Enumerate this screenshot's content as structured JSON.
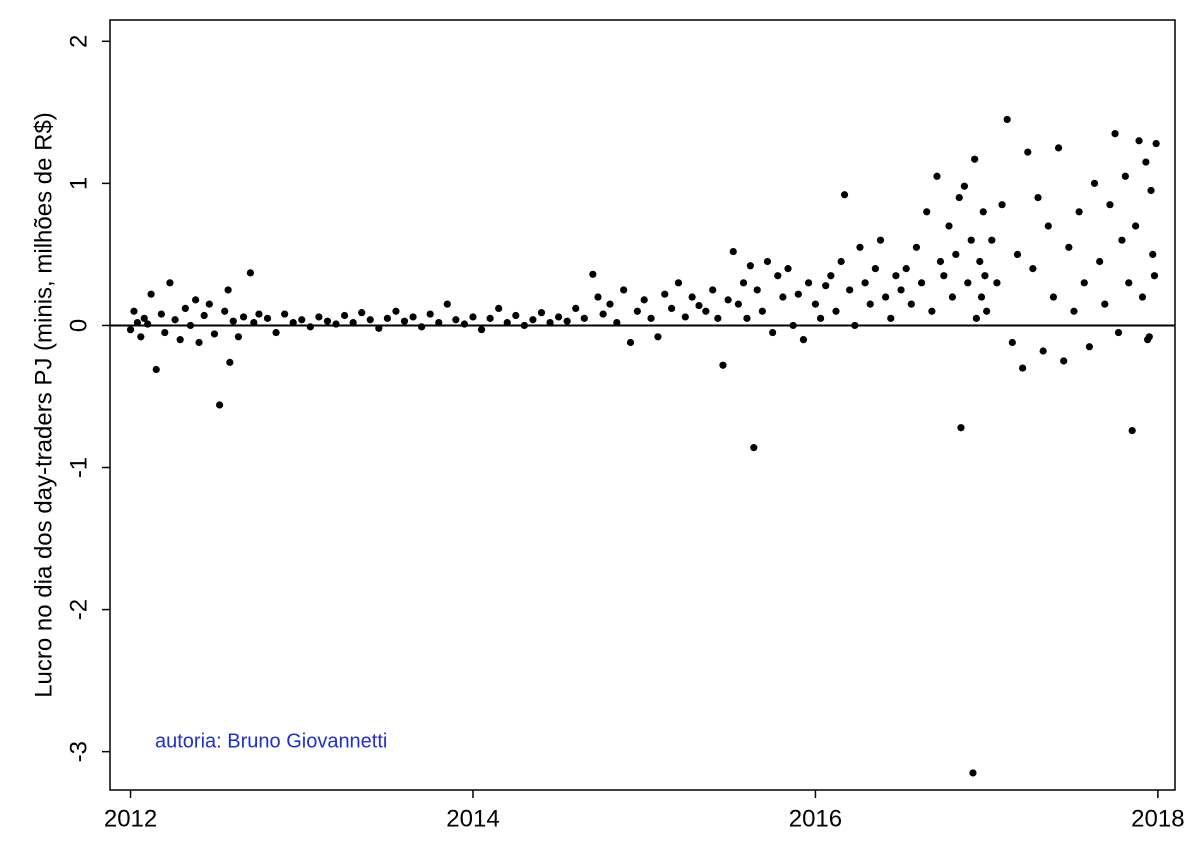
{
  "chart_data": {
    "type": "scatter",
    "y_label": "Lucro no dia dos day-traders PJ (minis, milhões de R$)",
    "annotation": "autoria: Bruno Giovannetti",
    "annotation_color": "#1f2fd0",
    "color": "#000000",
    "hline": 0,
    "xlim": [
      2011.88,
      2018.1
    ],
    "ylim": [
      -3.27,
      2.15
    ],
    "xticks": [
      2012,
      2014,
      2016,
      2018
    ],
    "yticks": [
      -3,
      -2,
      -1,
      0,
      1,
      2
    ],
    "x": [
      2012.0,
      2012.02,
      2012.04,
      2012.06,
      2012.08,
      2012.1,
      2012.12,
      2012.15,
      2012.18,
      2012.2,
      2012.23,
      2012.26,
      2012.29,
      2012.32,
      2012.35,
      2012.38,
      2012.4,
      2012.43,
      2012.46,
      2012.49,
      2012.52,
      2012.55,
      2012.57,
      2012.58,
      2012.6,
      2012.63,
      2012.66,
      2012.7,
      2012.72,
      2012.75,
      2012.8,
      2012.85,
      2012.9,
      2012.95,
      2013.0,
      2013.05,
      2013.1,
      2013.15,
      2013.2,
      2013.25,
      2013.3,
      2013.35,
      2013.4,
      2013.45,
      2013.5,
      2013.55,
      2013.6,
      2013.65,
      2013.7,
      2013.75,
      2013.8,
      2013.85,
      2013.9,
      2013.95,
      2014.0,
      2014.05,
      2014.1,
      2014.15,
      2014.2,
      2014.25,
      2014.3,
      2014.35,
      2014.4,
      2014.45,
      2014.5,
      2014.55,
      2014.6,
      2014.65,
      2014.7,
      2014.73,
      2014.76,
      2014.8,
      2014.84,
      2014.88,
      2014.92,
      2014.96,
      2015.0,
      2015.04,
      2015.08,
      2015.12,
      2015.16,
      2015.2,
      2015.24,
      2015.28,
      2015.32,
      2015.36,
      2015.4,
      2015.43,
      2015.46,
      2015.49,
      2015.52,
      2015.55,
      2015.58,
      2015.6,
      2015.62,
      2015.64,
      2015.66,
      2015.69,
      2015.72,
      2015.75,
      2015.78,
      2015.81,
      2015.84,
      2015.87,
      2015.9,
      2015.93,
      2015.96,
      2016.0,
      2016.03,
      2016.06,
      2016.09,
      2016.12,
      2016.15,
      2016.17,
      2016.2,
      2016.23,
      2016.26,
      2016.29,
      2016.32,
      2016.35,
      2016.38,
      2016.41,
      2016.44,
      2016.47,
      2016.5,
      2016.53,
      2016.56,
      2016.59,
      2016.62,
      2016.65,
      2016.68,
      2016.71,
      2016.73,
      2016.75,
      2016.78,
      2016.8,
      2016.82,
      2016.84,
      2016.85,
      2016.87,
      2016.89,
      2016.91,
      2016.92,
      2016.93,
      2016.94,
      2016.96,
      2016.97,
      2016.98,
      2016.99,
      2017.0,
      2017.03,
      2017.06,
      2017.09,
      2017.12,
      2017.15,
      2017.18,
      2017.21,
      2017.24,
      2017.27,
      2017.3,
      2017.33,
      2017.36,
      2017.39,
      2017.42,
      2017.45,
      2017.48,
      2017.51,
      2017.54,
      2017.57,
      2017.6,
      2017.63,
      2017.66,
      2017.69,
      2017.72,
      2017.75,
      2017.77,
      2017.79,
      2017.81,
      2017.83,
      2017.85,
      2017.87,
      2017.89,
      2017.91,
      2017.93,
      2017.95,
      2017.97,
      2017.99,
      2017.98,
      2017.96,
      2017.94
    ],
    "values": [
      -0.03,
      0.1,
      0.02,
      -0.08,
      0.05,
      0.01,
      0.22,
      -0.31,
      0.08,
      -0.05,
      0.3,
      0.04,
      -0.1,
      0.12,
      0.0,
      0.18,
      -0.12,
      0.07,
      0.15,
      -0.06,
      -0.56,
      0.1,
      0.25,
      -0.26,
      0.03,
      -0.08,
      0.06,
      0.37,
      0.02,
      0.08,
      0.05,
      -0.05,
      0.08,
      0.02,
      0.04,
      -0.01,
      0.06,
      0.03,
      0.01,
      0.07,
      0.02,
      0.09,
      0.04,
      -0.02,
      0.05,
      0.1,
      0.03,
      0.06,
      -0.01,
      0.08,
      0.02,
      0.15,
      0.04,
      0.01,
      0.06,
      -0.03,
      0.05,
      0.12,
      0.02,
      0.07,
      0.0,
      0.04,
      0.09,
      0.02,
      0.06,
      0.03,
      0.12,
      0.05,
      0.36,
      0.2,
      0.08,
      0.15,
      0.02,
      0.25,
      -0.12,
      0.1,
      0.18,
      0.05,
      -0.08,
      0.22,
      0.12,
      0.3,
      0.06,
      0.2,
      0.14,
      0.1,
      0.25,
      0.05,
      -0.28,
      0.18,
      0.52,
      0.15,
      0.3,
      0.05,
      0.42,
      -0.86,
      0.25,
      0.1,
      0.45,
      -0.05,
      0.35,
      0.2,
      0.4,
      0.0,
      0.22,
      -0.1,
      0.3,
      0.15,
      0.05,
      0.28,
      0.35,
      0.1,
      0.45,
      0.92,
      0.25,
      0.0,
      0.55,
      0.3,
      0.15,
      0.4,
      0.6,
      0.2,
      0.05,
      0.35,
      0.25,
      0.4,
      0.15,
      0.55,
      0.3,
      0.8,
      0.1,
      1.05,
      0.45,
      0.35,
      0.7,
      0.2,
      0.5,
      0.9,
      -0.72,
      0.98,
      0.3,
      0.6,
      -3.15,
      1.17,
      0.05,
      0.45,
      0.2,
      0.8,
      0.35,
      0.1,
      0.6,
      0.3,
      0.85,
      1.45,
      -0.12,
      0.5,
      -0.3,
      1.22,
      0.4,
      0.9,
      -0.18,
      0.7,
      0.2,
      1.25,
      -0.25,
      0.55,
      0.1,
      0.8,
      0.3,
      -0.15,
      1.0,
      0.45,
      0.15,
      0.85,
      1.35,
      -0.05,
      0.6,
      1.05,
      0.3,
      -0.74,
      0.7,
      1.3,
      0.2,
      1.15,
      -0.08,
      0.5,
      1.28,
      0.35,
      0.95,
      -0.1
    ]
  }
}
